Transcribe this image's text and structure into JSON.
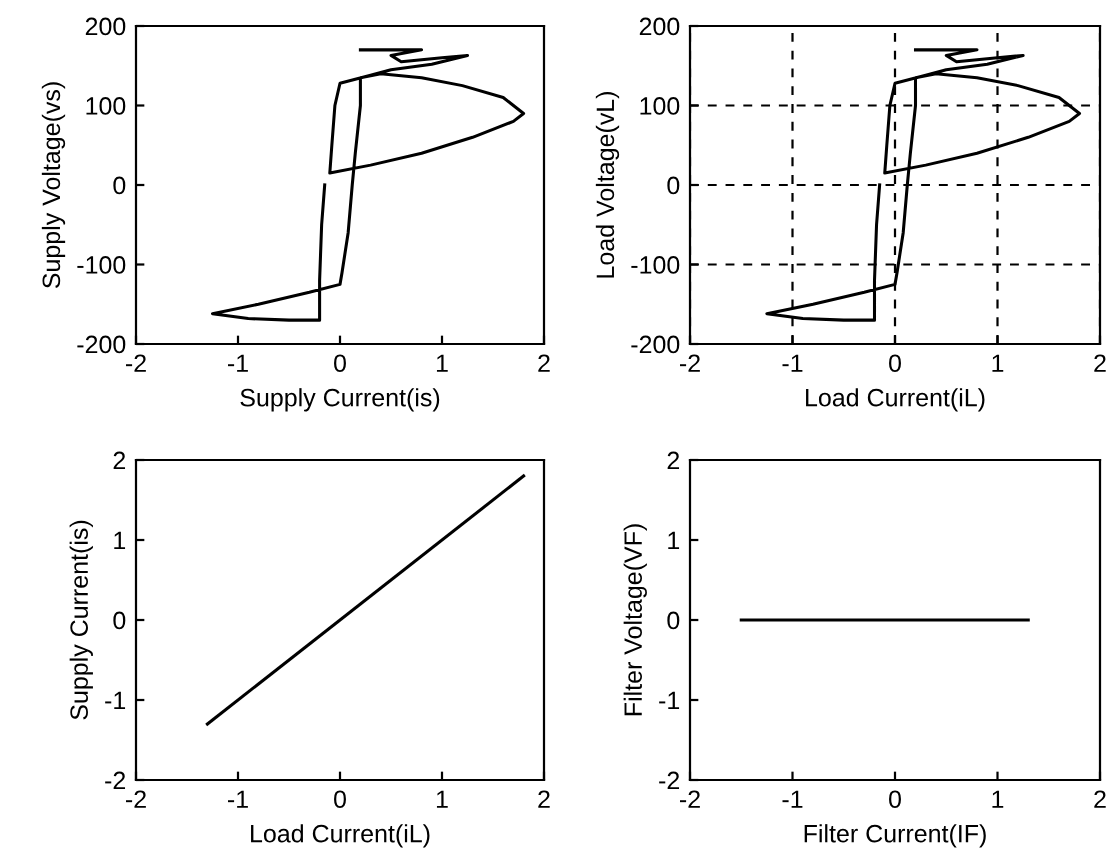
{
  "chart_data": [
    {
      "type": "line",
      "xlabel": "Supply Current(is)",
      "ylabel": "Supply Voltage(vs)",
      "xlim": [
        -2,
        2
      ],
      "ylim": [
        -200,
        200
      ],
      "xticks": [
        -2,
        -1,
        0,
        1,
        2
      ],
      "yticks": [
        -200,
        -100,
        0,
        100,
        200
      ],
      "grid": false,
      "series": [
        {
          "color": "#000000",
          "x": [
            0.2,
            0.8,
            0.5,
            0.6,
            1.0,
            1.25,
            0.9,
            0.5,
            0.3,
            0.0,
            -0.05,
            -0.08,
            -0.1,
            0.3,
            0.8,
            1.3,
            1.7,
            1.8,
            1.6,
            1.2,
            0.8,
            0.4,
            0.2,
            0.2,
            0.15,
            0.12,
            0.08,
            0.02,
            0.0,
            -0.3,
            -0.8,
            -1.25,
            -0.9,
            -0.5,
            -0.2,
            -0.2,
            -0.18,
            -0.15
          ],
          "values": [
            170,
            170,
            163,
            155,
            160,
            163,
            152,
            145,
            138,
            128,
            100,
            50,
            15,
            25,
            40,
            60,
            80,
            90,
            110,
            125,
            135,
            140,
            135,
            100,
            40,
            0,
            -60,
            -110,
            -125,
            -135,
            -150,
            -162,
            -168,
            -170,
            -170,
            -120,
            -50,
            0
          ]
        }
      ]
    },
    {
      "type": "line",
      "xlabel": "Load Current(iL)",
      "ylabel": "Load Voltage(vL)",
      "xlim": [
        -2,
        2
      ],
      "ylim": [
        -200,
        200
      ],
      "xticks": [
        -2,
        -1,
        0,
        1,
        2
      ],
      "yticks": [
        -200,
        -100,
        0,
        100,
        200
      ],
      "grid": true,
      "series": [
        {
          "color": "#000000",
          "x": [
            0.2,
            0.8,
            0.5,
            0.6,
            1.0,
            1.25,
            0.9,
            0.5,
            0.3,
            0.0,
            -0.05,
            -0.08,
            -0.1,
            0.3,
            0.8,
            1.3,
            1.7,
            1.8,
            1.6,
            1.2,
            0.8,
            0.4,
            0.2,
            0.2,
            0.15,
            0.12,
            0.08,
            0.02,
            0.0,
            -0.3,
            -0.8,
            -1.25,
            -0.9,
            -0.5,
            -0.2,
            -0.2,
            -0.18,
            -0.15
          ],
          "values": [
            170,
            170,
            163,
            155,
            160,
            163,
            152,
            145,
            138,
            128,
            100,
            50,
            15,
            25,
            40,
            60,
            80,
            90,
            110,
            125,
            135,
            140,
            135,
            100,
            40,
            0,
            -60,
            -110,
            -125,
            -135,
            -150,
            -162,
            -168,
            -170,
            -170,
            -120,
            -50,
            0
          ]
        }
      ]
    },
    {
      "type": "line",
      "xlabel": "Load Current(iL)",
      "ylabel": "Supply Current(is)",
      "xlim": [
        -2,
        2
      ],
      "ylim": [
        -2,
        2
      ],
      "xticks": [
        -2,
        -1,
        0,
        1,
        2
      ],
      "yticks": [
        -2,
        -1,
        0,
        1,
        2
      ],
      "grid": false,
      "series": [
        {
          "color": "#000000",
          "x": [
            -1.3,
            1.8
          ],
          "values": [
            -1.3,
            1.8
          ]
        }
      ]
    },
    {
      "type": "line",
      "xlabel": "Filter Current(IF)",
      "ylabel": "Filter Voltage(VF)",
      "xlim": [
        -2,
        2
      ],
      "ylim": [
        -2,
        2
      ],
      "xticks": [
        -2,
        -1,
        0,
        1,
        2
      ],
      "yticks": [
        -2,
        -1,
        0,
        1,
        2
      ],
      "grid": false,
      "series": [
        {
          "color": "#000000",
          "x": [
            -1.5,
            1.3
          ],
          "values": [
            0,
            0
          ]
        }
      ]
    }
  ]
}
